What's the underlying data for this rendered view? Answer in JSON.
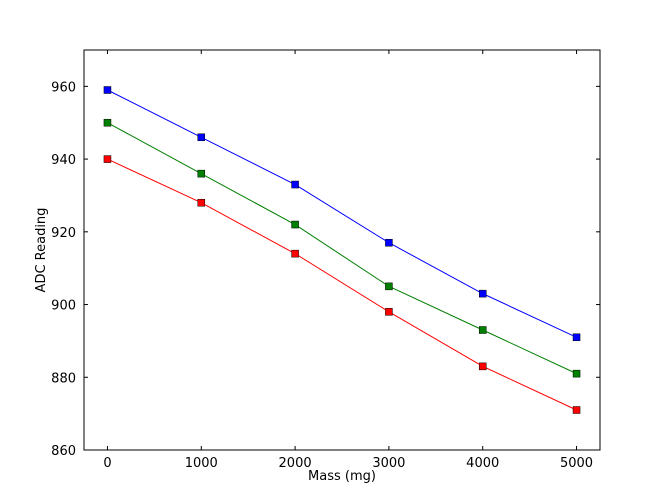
{
  "chart_data": {
    "type": "line",
    "title": "",
    "xlabel": "Mass (mg)",
    "ylabel": "ADC Reading",
    "xlim": [
      -250,
      5250
    ],
    "ylim": [
      860,
      970
    ],
    "x_ticks": [
      0,
      1000,
      2000,
      3000,
      4000,
      5000
    ],
    "y_ticks": [
      860,
      880,
      900,
      920,
      940,
      960
    ],
    "grid": false,
    "legend": "none",
    "marker": "square",
    "x": [
      0,
      1000,
      2000,
      3000,
      4000,
      5000
    ],
    "series": [
      {
        "color": "#0000ff",
        "values": [
          959,
          946,
          933,
          917,
          903,
          891
        ]
      },
      {
        "color": "#007f00",
        "values": [
          950,
          936,
          922,
          905,
          893,
          881
        ]
      },
      {
        "color": "#ff0000",
        "values": [
          940,
          928,
          914,
          898,
          883,
          871
        ]
      }
    ]
  }
}
